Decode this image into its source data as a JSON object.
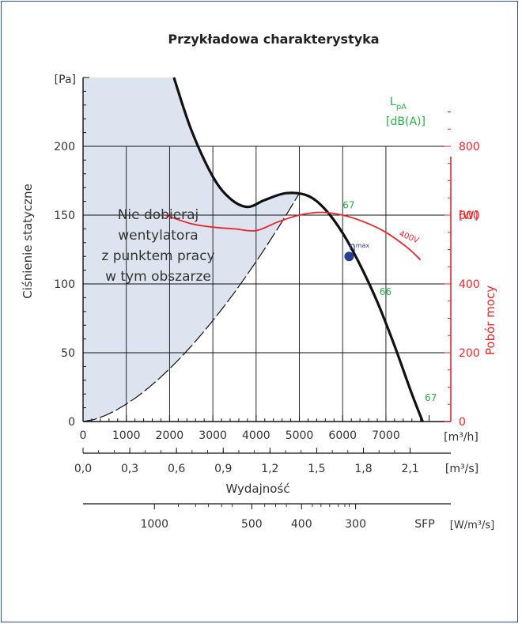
{
  "chart_data": {
    "type": "line",
    "title": "Przykładowa charakterystyka",
    "ylabel": "Ciśnienie statyczne",
    "y_unit": "[Pa]",
    "ylim": [
      0,
      250
    ],
    "yticks": [
      "0",
      "50",
      "100",
      "150",
      "200"
    ],
    "y2label": "Pobór mocy",
    "y2_unit": "[W]",
    "y2lim": [
      0,
      1000
    ],
    "y2ticks": [
      "0",
      "200",
      "400",
      "600",
      "800"
    ],
    "xlabel": "Wydajność",
    "x_unit": "[m³/h]",
    "xlim": [
      0,
      8500
    ],
    "xticks": [
      "0",
      "1000",
      "2000",
      "3000",
      "4000",
      "5000",
      "6000",
      "7000"
    ],
    "x2_unit": "[m³/s]",
    "x2ticks": [
      "0,0",
      "0,3",
      "0,6",
      "0,9",
      "1,2",
      "1,5",
      "1,8",
      "2,1"
    ],
    "sfp_label": "SFP",
    "sfp_unit": "[W/m³/s]",
    "sfp_ticks": [
      "1000",
      "500",
      "400",
      "300"
    ],
    "sound_label": "L",
    "sound_sub": "pA",
    "sound_unit": "[dB(A)]",
    "sound_levels": [
      {
        "label": "67",
        "x": 6000,
        "y": 155
      },
      {
        "label": "66",
        "x": 6850,
        "y": 92
      },
      {
        "label": "67",
        "x": 7900,
        "y": 15
      }
    ],
    "eta_label": "η",
    "eta_sup": "max",
    "eta_point": {
      "x": 6150,
      "y": 120
    },
    "warning_lines": [
      "Nie dobieraj",
      "wentylatora",
      "z punktem pracy",
      "w tym obszarze"
    ],
    "series": [
      {
        "name": "",
        "axis": "left",
        "color": "#111111",
        "x": [
          2100,
          2500,
          3000,
          3400,
          3800,
          4200,
          4700,
          5200,
          5600,
          6000,
          6400,
          6800,
          7200,
          7600,
          7850
        ],
        "y": [
          250,
          212,
          178,
          162,
          156,
          161,
          166,
          164,
          154,
          137,
          114,
          87,
          55,
          20,
          0
        ]
      },
      {
        "name": "400V",
        "axis": "right",
        "color": "#e8262a",
        "x": [
          1900,
          2500,
          3000,
          3500,
          4000,
          4500,
          5000,
          5500,
          6000,
          6500,
          7000,
          7500,
          7800
        ],
        "y": [
          600,
          575,
          565,
          560,
          555,
          580,
          600,
          608,
          600,
          580,
          550,
          505,
          470
        ]
      }
    ],
    "grid": true,
    "legend": "none"
  }
}
